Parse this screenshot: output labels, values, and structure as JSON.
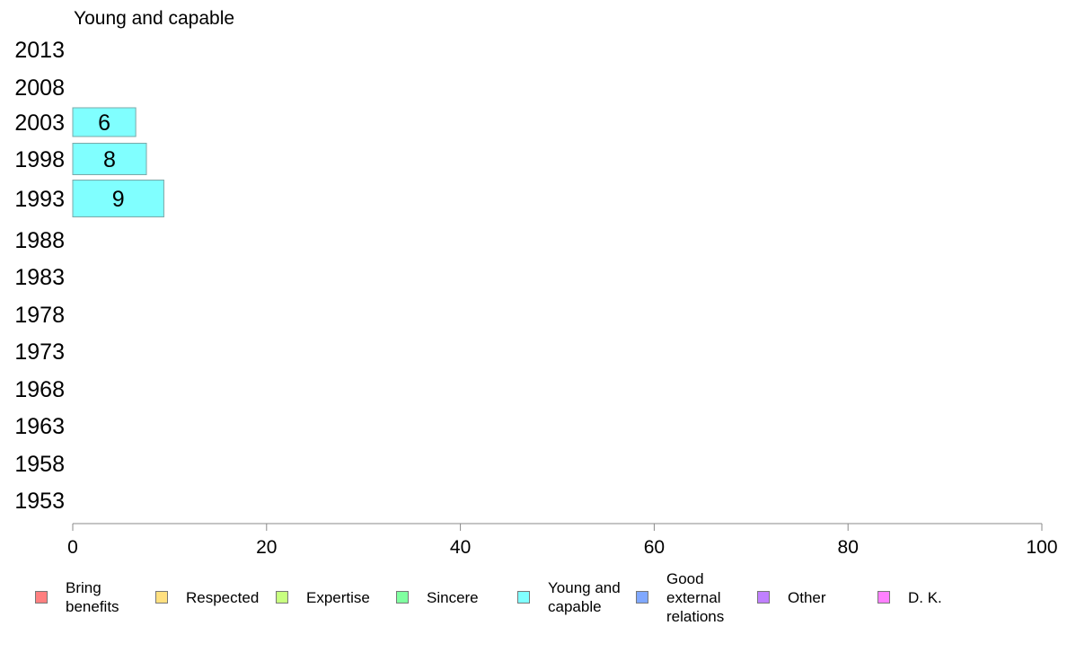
{
  "chart_data": {
    "type": "bar",
    "orientation": "horizontal",
    "title": "Young and capable",
    "categories": [
      "2013",
      "2008",
      "2003",
      "1998",
      "1993",
      "1988",
      "1983",
      "1978",
      "1973",
      "1968",
      "1963",
      "1958",
      "1953"
    ],
    "series": [
      {
        "name": "Young and capable",
        "color": "#80ffff",
        "values": [
          null,
          null,
          6.5,
          7.6,
          9.4,
          null,
          null,
          null,
          null,
          null,
          null,
          null,
          null
        ],
        "labels": [
          "",
          "",
          "6",
          "8",
          "9",
          "",
          "",
          "",
          "",
          "",
          "",
          "",
          ""
        ]
      }
    ],
    "xlim": [
      0,
      100
    ],
    "xticks": [
      "0",
      "20",
      "40",
      "60",
      "80",
      "100"
    ],
    "grid": false,
    "legend_position": "bottom",
    "legend": [
      {
        "label": "Bring\nbenefits",
        "color": "#ff8080"
      },
      {
        "label": "Respected",
        "color": "#ffe080"
      },
      {
        "label": "Expertise",
        "color": "#c8ff80"
      },
      {
        "label": "Sincere",
        "color": "#80ffa0"
      },
      {
        "label": "Young and\ncapable",
        "color": "#80ffff"
      },
      {
        "label": "Good\nexternal\nrelations",
        "color": "#80a8ff"
      },
      {
        "label": "Other",
        "color": "#c080ff"
      },
      {
        "label": "D. K.",
        "color": "#ff80ff"
      }
    ]
  }
}
